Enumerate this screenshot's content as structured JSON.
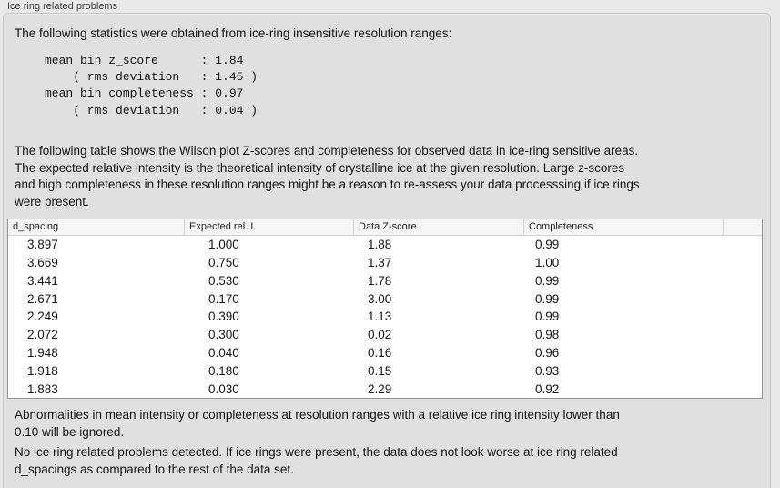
{
  "group": {
    "title": "Ice ring related problems"
  },
  "stats": {
    "intro": "The following statistics were obtained from ice-ring insensitive resolution ranges:",
    "block": "mean bin z_score      : 1.84\n    ( rms deviation   : 1.45 )\nmean bin completeness : 0.97\n    ( rms deviation   : 0.04 )"
  },
  "description": "The following table shows the Wilson plot Z-scores and completeness for observed data in ice-ring sensitive areas.\nThe expected relative intensity is the theoretical intensity of crystalline ice at the given resolution. Large z-scores\nand high completeness in these resolution ranges might be a reason to re-assess your data processsing if ice rings\nwere present.",
  "table": {
    "headers": [
      "d_spacing",
      "Expected rel. I",
      "Data Z-score",
      "Completeness"
    ],
    "rows": [
      [
        "3.897",
        "1.000",
        "1.88",
        "0.99"
      ],
      [
        "3.669",
        "0.750",
        "1.37",
        "1.00"
      ],
      [
        "3.441",
        "0.530",
        "1.78",
        "0.99"
      ],
      [
        "2.671",
        "0.170",
        "3.00",
        "0.99"
      ],
      [
        "2.249",
        "0.390",
        "1.13",
        "0.99"
      ],
      [
        "2.072",
        "0.300",
        "0.02",
        "0.98"
      ],
      [
        "1.948",
        "0.040",
        "0.16",
        "0.96"
      ],
      [
        "1.918",
        "0.180",
        "0.15",
        "0.93"
      ],
      [
        "1.883",
        "0.030",
        "2.29",
        "0.92"
      ]
    ]
  },
  "notes": {
    "threshold": "Abnormalities in mean intensity or completeness at resolution ranges with a relative ice ring intensity lower than\n0.10 will be ignored.",
    "conclusion": "No ice ring related problems detected. If ice rings were present, the data does not look worse at ice ring related\nd_spacings as compared to the rest of the data set."
  },
  "colors": {
    "page_bg": "#e9e9e9",
    "box_bg": "#e0e0e0",
    "box_border": "#c6c6c6",
    "table_bg": "#ffffff",
    "table_border": "#949494",
    "text": "#141414"
  }
}
